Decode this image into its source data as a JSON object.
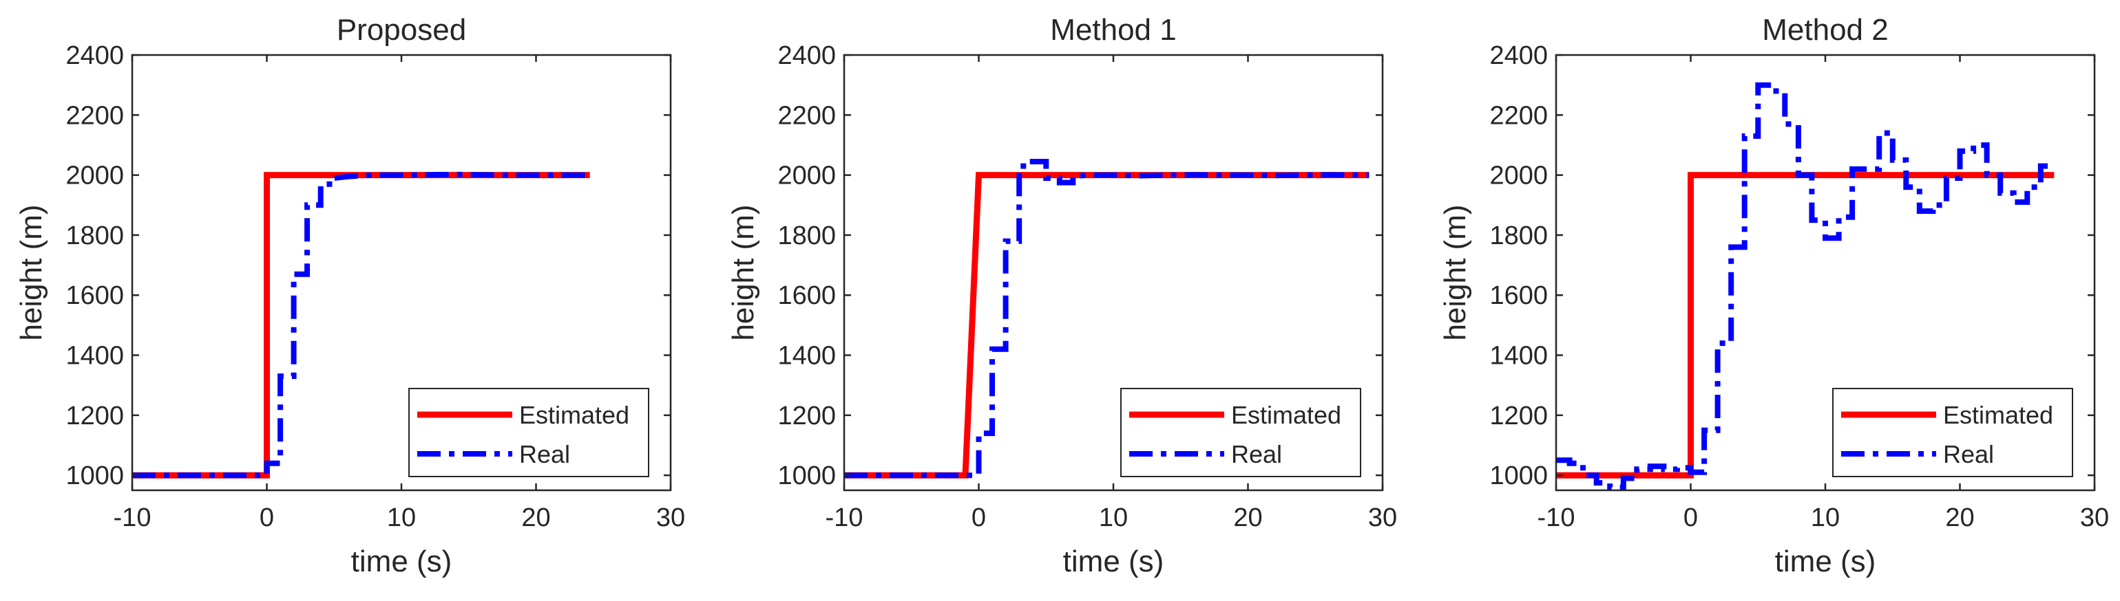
{
  "colors": {
    "estimated": "#ff0000",
    "real": "#0000ff",
    "axis": "#262626"
  },
  "chart_data": [
    {
      "type": "line",
      "title": "Proposed",
      "xlabel": "time (s)",
      "ylabel": "height (m)",
      "xlim": [
        -10,
        30
      ],
      "ylim": [
        950,
        2400
      ],
      "xticks": [
        -10,
        0,
        10,
        20,
        30
      ],
      "yticks": [
        1000,
        1200,
        1400,
        1600,
        1800,
        2000,
        2200,
        2400
      ],
      "legend_position": "bottom-right",
      "series": [
        {
          "name": "Estimated",
          "style": "solid",
          "color": "#ff0000",
          "x": [
            -10,
            0,
            0,
            24
          ],
          "y": [
            1000,
            1000,
            2000,
            2000
          ]
        },
        {
          "name": "Real",
          "style": "dash-dot",
          "color": "#0000ff",
          "x": [
            -10,
            0,
            0,
            1,
            1,
            2,
            2,
            3,
            3,
            4,
            4,
            5,
            5,
            6,
            7,
            8,
            10,
            12,
            14,
            16,
            18,
            20,
            22,
            24
          ],
          "y": [
            1000,
            1000,
            1040,
            1040,
            1330,
            1330,
            1670,
            1670,
            1900,
            1900,
            1970,
            1970,
            1990,
            1995,
            1998,
            2000,
            2000,
            2001,
            2002,
            2001,
            2000,
            2000,
            2000,
            2000
          ]
        }
      ]
    },
    {
      "type": "line",
      "title": "Method 1",
      "xlabel": "time (s)",
      "ylabel": "height (m)",
      "xlim": [
        -10,
        30
      ],
      "ylim": [
        950,
        2400
      ],
      "xticks": [
        -10,
        0,
        10,
        20,
        30
      ],
      "yticks": [
        1000,
        1200,
        1400,
        1600,
        1800,
        2000,
        2200,
        2400
      ],
      "legend_position": "bottom-right",
      "series": [
        {
          "name": "Estimated",
          "style": "solid",
          "color": "#ff0000",
          "x": [
            -10,
            -1,
            0,
            29
          ],
          "y": [
            1000,
            1000,
            2000,
            2000
          ]
        },
        {
          "name": "Real",
          "style": "dash-dot",
          "color": "#0000ff",
          "x": [
            -10,
            0,
            0,
            1,
            1,
            2,
            2,
            3,
            3,
            4,
            4,
            5,
            5,
            6,
            6,
            7,
            7,
            8,
            10,
            12,
            14,
            16,
            18,
            20,
            22,
            24,
            26,
            29
          ],
          "y": [
            1000,
            1000,
            1140,
            1140,
            1420,
            1420,
            1780,
            1780,
            2030,
            2030,
            2045,
            2045,
            1990,
            1990,
            1975,
            1975,
            1995,
            2000,
            2000,
            1998,
            2000,
            2001,
            2000,
            2000,
            1999,
            2000,
            2001,
            2000
          ]
        }
      ]
    },
    {
      "type": "line",
      "title": "Method 2",
      "xlabel": "time (s)",
      "ylabel": "height (m)",
      "xlim": [
        -10,
        30
      ],
      "ylim": [
        950,
        2400
      ],
      "xticks": [
        -10,
        0,
        10,
        20,
        30
      ],
      "yticks": [
        1000,
        1200,
        1400,
        1600,
        1800,
        2000,
        2200,
        2400
      ],
      "legend_position": "bottom-right",
      "series": [
        {
          "name": "Estimated",
          "style": "solid",
          "color": "#ff0000",
          "x": [
            -10,
            0,
            0,
            27
          ],
          "y": [
            1000,
            1000,
            2000,
            2000
          ]
        },
        {
          "name": "Real",
          "style": "dash-dot",
          "color": "#0000ff",
          "x": [
            -10,
            -9,
            -9,
            -8,
            -8,
            -7,
            -7,
            -6,
            -6,
            -5,
            -5,
            -4,
            -4,
            -3,
            -3,
            -2,
            -2,
            -1,
            -1,
            0,
            0,
            1,
            1,
            2,
            2,
            3,
            3,
            4,
            4,
            5,
            5,
            6,
            6,
            7,
            7,
            8,
            8,
            9,
            9,
            10,
            10,
            11,
            11,
            12,
            12,
            14,
            14,
            15,
            15,
            16,
            16,
            17,
            17,
            18,
            18,
            19,
            19,
            20,
            20,
            21,
            21,
            22,
            22,
            23,
            23,
            24,
            24,
            25,
            25,
            26,
            26,
            27
          ],
          "y": [
            1050,
            1050,
            1040,
            1040,
            1000,
            1000,
            975,
            975,
            960,
            960,
            990,
            990,
            1020,
            1020,
            1030,
            1030,
            1020,
            1020,
            1025,
            1025,
            1010,
            1010,
            1150,
            1150,
            1440,
            1440,
            1760,
            1760,
            2130,
            2130,
            2300,
            2300,
            2280,
            2280,
            2170,
            2170,
            2000,
            2000,
            1850,
            1850,
            1790,
            1790,
            1860,
            1860,
            2020,
            2020,
            2140,
            2140,
            2050,
            2050,
            1960,
            1960,
            1880,
            1880,
            1900,
            1900,
            1990,
            1990,
            2080,
            2080,
            2100,
            2100,
            2000,
            2000,
            1940,
            1940,
            1910,
            1910,
            1960,
            1960,
            2030,
            2030
          ]
        }
      ]
    }
  ]
}
